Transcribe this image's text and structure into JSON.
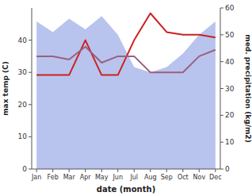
{
  "chart_data": {
    "type": "line",
    "categories": [
      "Jan",
      "Feb",
      "Mar",
      "Apr",
      "May",
      "Jun",
      "Jul",
      "Aug",
      "Sep",
      "Oct",
      "Nov",
      "Dec"
    ],
    "xlabel": "date (month)",
    "ylabel": "max temp (C)",
    "y2label": "med. precipitation (kg/m2)",
    "ylim": [
      0,
      50
    ],
    "yticks": [
      0,
      10,
      20,
      30,
      40
    ],
    "y2lim": [
      0,
      60
    ],
    "y2ticks": [
      0,
      10,
      20,
      30,
      40,
      50,
      60
    ],
    "grid": false,
    "series": [
      {
        "type": "area",
        "axis": "y2",
        "color": "#b8c4ee",
        "values": [
          55,
          51,
          56,
          52,
          57,
          50,
          38,
          36,
          38,
          43,
          50,
          55
        ]
      },
      {
        "type": "line",
        "axis": "y2",
        "color": "#cc2020",
        "values": [
          35,
          35,
          35,
          48,
          35,
          35,
          48,
          58,
          51,
          50,
          50,
          49
        ]
      },
      {
        "type": "line",
        "color": "#9b6080",
        "values": [
          35,
          35,
          34,
          38,
          33,
          35,
          35,
          30,
          30,
          30,
          35,
          37
        ]
      }
    ]
  }
}
